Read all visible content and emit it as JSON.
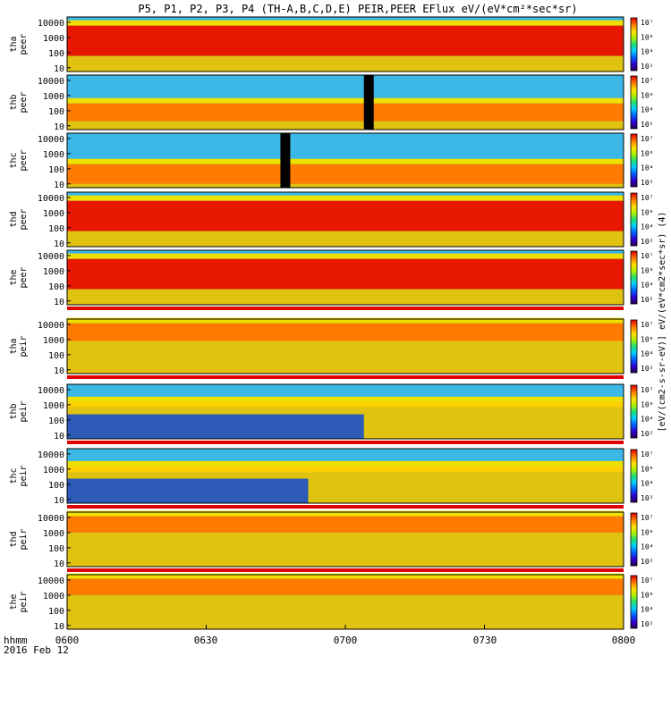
{
  "chart_data": {
    "type": "heatmap",
    "title": "P5, P1, P2, P3, P4 (TH-A,B,C,D,E) PEIR,PEER EFlux eV/(eV*cm²*sec*sr)",
    "x_label_line1": "hhmm",
    "x_label_line2": "2016 Feb 12",
    "x_ticks": [
      "0600",
      "0630",
      "0700",
      "0730",
      "0800"
    ],
    "x_range": [
      "0600",
      "0800"
    ],
    "y_scale": "log",
    "y_ticks": [
      "10",
      "100",
      "1000",
      "10000"
    ],
    "colorbar_ticks": [
      "10²",
      "10⁴",
      "10⁶",
      "10⁷"
    ],
    "colorbar_label": "[eV/(cm2-s-sr-eV)] eV/(eV*cm2*sec*sr) (4)",
    "panels": [
      {
        "probe": "tha",
        "species": "peer",
        "peak_band": [
          60,
          6000
        ],
        "level_log": 7.3
      },
      {
        "probe": "thb",
        "species": "peer",
        "peak_band": [
          20,
          300
        ],
        "level_log": 6.6,
        "gap_at": "0704"
      },
      {
        "probe": "thc",
        "species": "peer",
        "peak_band": [
          10,
          200
        ],
        "level_log": 6.4,
        "gap_at": "0646"
      },
      {
        "probe": "thd",
        "species": "peer",
        "peak_band": [
          60,
          6000
        ],
        "level_log": 7.2
      },
      {
        "probe": "the",
        "species": "peer",
        "peak_band": [
          60,
          6000
        ],
        "level_log": 7.3
      },
      {
        "probe": "tha",
        "species": "peir",
        "peak_band": [
          800,
          12000
        ],
        "level_log": 6.5
      },
      {
        "probe": "thb",
        "species": "peir",
        "peak_band": [
          700,
          1500
        ],
        "level_log": 5.8,
        "mode_change_at": "0704"
      },
      {
        "probe": "thc",
        "species": "peir",
        "peak_band": [
          600,
          1500
        ],
        "level_log": 5.8,
        "mode_change_at": "0652"
      },
      {
        "probe": "thd",
        "species": "peir",
        "peak_band": [
          1000,
          12000
        ],
        "level_log": 6.4
      },
      {
        "probe": "the",
        "species": "peir",
        "peak_band": [
          1000,
          12000
        ],
        "level_log": 6.5
      }
    ]
  }
}
